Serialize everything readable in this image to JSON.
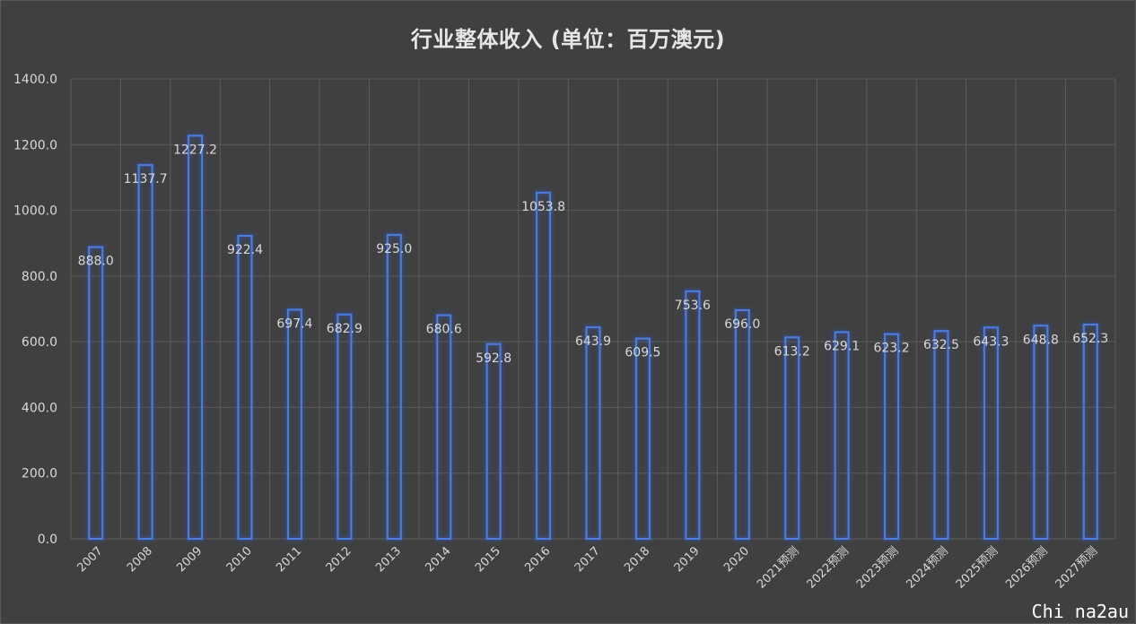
{
  "chart_data": {
    "type": "bar",
    "title": "行业整体收入 (单位：百万澳元)",
    "xlabel": "",
    "ylabel": "",
    "ylim": [
      0,
      1400
    ],
    "yticks": [
      "0.0",
      "200.0",
      "400.0",
      "600.0",
      "800.0",
      "1000.0",
      "1200.0",
      "1400.0"
    ],
    "grid": true,
    "legend": "none",
    "categories": [
      "2007",
      "2008",
      "2009",
      "2010",
      "2011",
      "2012",
      "2013",
      "2014",
      "2015",
      "2016",
      "2017",
      "2018",
      "2019",
      "2020",
      "2021预测",
      "2022预测",
      "2023预测",
      "2024预测",
      "2025预测",
      "2026预测",
      "2027预测"
    ],
    "series": [
      {
        "values": [
          888.0,
          1137.7,
          1227.2,
          922.4,
          697.4,
          682.9,
          925.0,
          680.6,
          592.8,
          1053.8,
          643.9,
          609.5,
          753.6,
          696.0,
          613.2,
          629.1,
          623.2,
          632.5,
          643.3,
          648.8,
          652.3
        ],
        "labels": [
          "888.0",
          "1137.7",
          "1227.2",
          "922.4",
          "697.4",
          "682.9",
          "925.0",
          "680.6",
          "592.8",
          "1053.8",
          "643.9",
          "609.5",
          "753.6",
          "696.0",
          "613.2",
          "629.1",
          "623.2",
          "632.5",
          "643.3",
          "648.8",
          "652.3"
        ]
      }
    ]
  },
  "colors": {
    "background": "#404040",
    "gridline": "#5c5c5c",
    "bar_stroke": "#4f7bd9",
    "bar_glow": "#2d5fd6",
    "text": "#d9d9d9"
  },
  "watermark": "Chi na2au"
}
